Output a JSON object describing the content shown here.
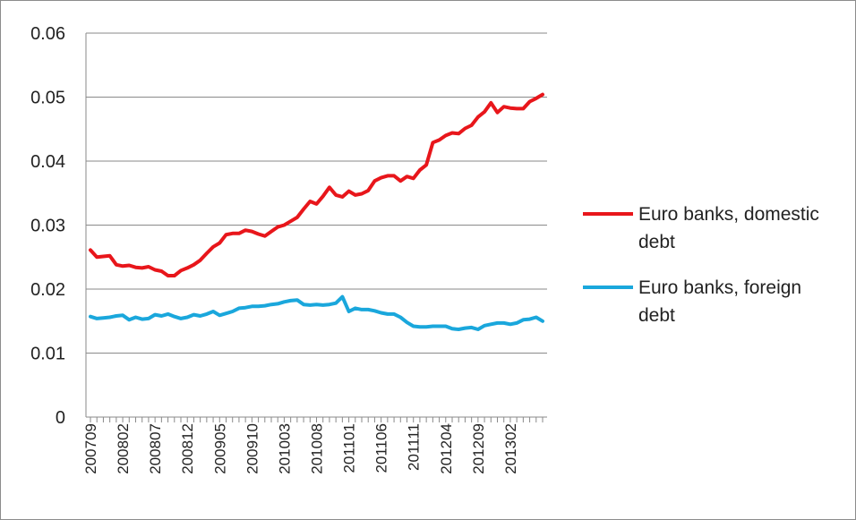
{
  "chart_data": {
    "type": "line",
    "xlabel": "",
    "ylabel": "",
    "ylim": [
      0,
      0.06
    ],
    "yticks": [
      "0",
      "0.01",
      "0.02",
      "0.03",
      "0.04",
      "0.05",
      "0.06"
    ],
    "grid": true,
    "legend_position": "right",
    "x_tick_labels": [
      "200709",
      "200802",
      "200807",
      "200812",
      "200905",
      "200910",
      "201003",
      "201008",
      "201101",
      "201106",
      "201111",
      "201204",
      "201209",
      "201302"
    ],
    "categories": [
      "200709",
      "200710",
      "200711",
      "200712",
      "200801",
      "200802",
      "200803",
      "200804",
      "200805",
      "200806",
      "200807",
      "200808",
      "200809",
      "200810",
      "200811",
      "200812",
      "200901",
      "200902",
      "200903",
      "200904",
      "200905",
      "200906",
      "200907",
      "200908",
      "200909",
      "200910",
      "200911",
      "200912",
      "201001",
      "201002",
      "201003",
      "201004",
      "201005",
      "201006",
      "201007",
      "201008",
      "201009",
      "201010",
      "201011",
      "201012",
      "201101",
      "201102",
      "201103",
      "201104",
      "201105",
      "201106",
      "201107",
      "201108",
      "201109",
      "201110",
      "201111",
      "201112",
      "201201",
      "201202",
      "201203",
      "201204",
      "201205",
      "201206",
      "201207",
      "201208",
      "201209",
      "201210",
      "201211",
      "201212",
      "201301",
      "201302",
      "201303",
      "201304",
      "201305",
      "201306",
      "201307"
    ],
    "series": [
      {
        "name": "Euro banks, domestic debt",
        "color": "#e8161b",
        "values": [
          0.0261,
          0.025,
          0.0251,
          0.0252,
          0.0238,
          0.0236,
          0.0237,
          0.0234,
          0.0233,
          0.0235,
          0.023,
          0.0228,
          0.0221,
          0.0221,
          0.0229,
          0.0233,
          0.0238,
          0.0245,
          0.0256,
          0.0266,
          0.0272,
          0.0285,
          0.0287,
          0.0287,
          0.0292,
          0.029,
          0.0286,
          0.0283,
          0.029,
          0.0297,
          0.03,
          0.0306,
          0.0312,
          0.0325,
          0.0337,
          0.0333,
          0.0345,
          0.0359,
          0.0347,
          0.0344,
          0.0353,
          0.0347,
          0.0349,
          0.0354,
          0.0369,
          0.0374,
          0.0377,
          0.0377,
          0.0369,
          0.0376,
          0.0373,
          0.0386,
          0.0394,
          0.0429,
          0.0433,
          0.044,
          0.0444,
          0.0443,
          0.0451,
          0.0456,
          0.0469,
          0.0477,
          0.0491,
          0.0476,
          0.0485,
          0.0483,
          0.0482,
          0.0482,
          0.0493,
          0.0498,
          0.0504
        ]
      },
      {
        "name": "Euro banks, foreign debt",
        "color": "#1aa7dc",
        "values": [
          0.0157,
          0.0154,
          0.0155,
          0.0156,
          0.0158,
          0.0159,
          0.0152,
          0.0156,
          0.0153,
          0.0154,
          0.016,
          0.0158,
          0.0161,
          0.0157,
          0.0154,
          0.0156,
          0.016,
          0.0158,
          0.0161,
          0.0165,
          0.0159,
          0.0162,
          0.0165,
          0.017,
          0.0171,
          0.0173,
          0.0173,
          0.0174,
          0.0176,
          0.0177,
          0.018,
          0.0182,
          0.0183,
          0.0176,
          0.0175,
          0.0176,
          0.0175,
          0.0176,
          0.0178,
          0.0188,
          0.0165,
          0.017,
          0.0168,
          0.0168,
          0.0166,
          0.0163,
          0.0161,
          0.0161,
          0.0156,
          0.0148,
          0.0142,
          0.0141,
          0.0141,
          0.0142,
          0.0142,
          0.0142,
          0.0138,
          0.0137,
          0.0139,
          0.014,
          0.0137,
          0.0143,
          0.0145,
          0.0147,
          0.0147,
          0.0145,
          0.0147,
          0.0152,
          0.0153,
          0.0156,
          0.015
        ]
      }
    ]
  }
}
